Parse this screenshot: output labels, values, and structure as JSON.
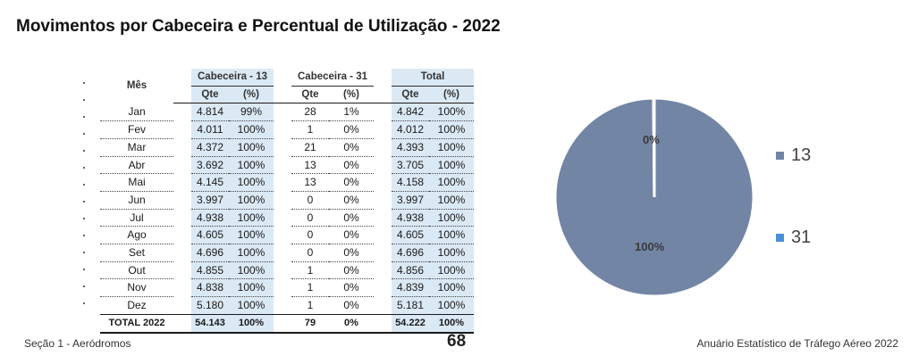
{
  "title": "Movimentos por Cabeceira e Percentual de Utilização - 2022",
  "table": {
    "mes_header": "Mês",
    "groups": [
      "Cabeceira - 13",
      "Cabeceira - 31",
      "Total"
    ],
    "sub_headers": [
      "Qte",
      "(%)"
    ],
    "rows": [
      [
        "Jan",
        "4.814",
        "99%",
        "28",
        "1%",
        "4.842",
        "100%"
      ],
      [
        "Fev",
        "4.011",
        "100%",
        "1",
        "0%",
        "4.012",
        "100%"
      ],
      [
        "Mar",
        "4.372",
        "100%",
        "21",
        "0%",
        "4.393",
        "100%"
      ],
      [
        "Abr",
        "3.692",
        "100%",
        "13",
        "0%",
        "3.705",
        "100%"
      ],
      [
        "Mai",
        "4.145",
        "100%",
        "13",
        "0%",
        "4.158",
        "100%"
      ],
      [
        "Jun",
        "3.997",
        "100%",
        "0",
        "0%",
        "3.997",
        "100%"
      ],
      [
        "Jul",
        "4.938",
        "100%",
        "0",
        "0%",
        "4.938",
        "100%"
      ],
      [
        "Ago",
        "4.605",
        "100%",
        "0",
        "0%",
        "4.605",
        "100%"
      ],
      [
        "Set",
        "4.696",
        "100%",
        "0",
        "0%",
        "4.696",
        "100%"
      ],
      [
        "Out",
        "4.855",
        "100%",
        "1",
        "0%",
        "4.856",
        "100%"
      ],
      [
        "Nov",
        "4.838",
        "100%",
        "1",
        "0%",
        "4.839",
        "100%"
      ],
      [
        "Dez",
        "5.180",
        "100%",
        "1",
        "0%",
        "5.181",
        "100%"
      ]
    ],
    "total": [
      "TOTAL 2022",
      "54.143",
      "100%",
      "79",
      "0%",
      "54.222",
      "100%"
    ]
  },
  "chart_data": {
    "type": "pie",
    "slices": [
      {
        "label": "13",
        "value": 54143,
        "pct_label": "100%",
        "color": "#7285a5"
      },
      {
        "label": "31",
        "value": 79,
        "pct_label": "0%",
        "color": "#4a90d9"
      }
    ],
    "legend": [
      "13",
      "31"
    ],
    "legend_position": "right"
  },
  "footer": {
    "left": "Seção 1 - Aeródromos",
    "page": "68",
    "right": "Anuário Estatístico de Tráfego Aéreo 2022"
  }
}
